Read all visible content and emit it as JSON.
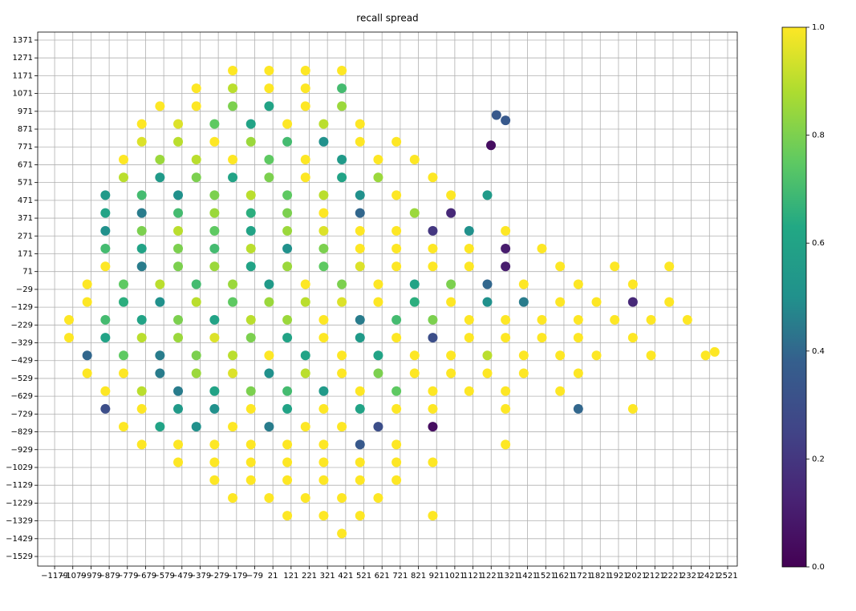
{
  "chart_data": {
    "type": "scatter",
    "title": "recall spread",
    "xlim": [
      -1272,
      2574
    ],
    "ylim": [
      -1583,
      1416
    ],
    "grid": true,
    "xticks": [
      {
        "value": -1179,
        "label": "−1179"
      },
      {
        "value": -1079,
        "label": "−1079"
      },
      {
        "value": -979,
        "label": "−979"
      },
      {
        "value": -879,
        "label": "−879"
      },
      {
        "value": -779,
        "label": "−779"
      },
      {
        "value": -679,
        "label": "−679"
      },
      {
        "value": -579,
        "label": "−579"
      },
      {
        "value": -479,
        "label": "−479"
      },
      {
        "value": -379,
        "label": "−379"
      },
      {
        "value": -279,
        "label": "−279"
      },
      {
        "value": -179,
        "label": "−179"
      },
      {
        "value": -79,
        "label": "−79"
      },
      21,
      121,
      221,
      321,
      421,
      521,
      621,
      721,
      821,
      921,
      1021,
      1121,
      1221,
      1321,
      1421,
      1521,
      1621,
      1721,
      1821,
      1921,
      2021,
      2121,
      2221,
      2321,
      2421,
      2521
    ],
    "yticks": [
      {
        "value": -1529,
        "label": "−1529"
      },
      {
        "value": -1429,
        "label": "−1429"
      },
      {
        "value": -1329,
        "label": "−1329"
      },
      {
        "value": -1229,
        "label": "−1229"
      },
      {
        "value": -1129,
        "label": "−1129"
      },
      {
        "value": -1029,
        "label": "−1029"
      },
      {
        "value": -929,
        "label": "−929"
      },
      {
        "value": -829,
        "label": "−829"
      },
      {
        "value": -729,
        "label": "−729"
      },
      {
        "value": -629,
        "label": "−629"
      },
      {
        "value": -529,
        "label": "−529"
      },
      {
        "value": -429,
        "label": "−429"
      },
      {
        "value": -329,
        "label": "−329"
      },
      {
        "value": -229,
        "label": "−229"
      },
      {
        "value": -129,
        "label": "−129"
      },
      {
        "value": -29,
        "label": "−29"
      },
      71,
      171,
      271,
      371,
      471,
      571,
      671,
      771,
      871,
      971,
      1071,
      1171,
      1271,
      1371
    ],
    "colorbar": {
      "lim": [
        0,
        1
      ],
      "ticks": [
        {
          "value": 0,
          "label": "0.0"
        },
        0.2,
        0.4,
        0.6,
        0.8,
        {
          "value": 1,
          "label": "1.0"
        }
      ]
    },
    "x": [
      -200,
      0,
      200,
      400,
      -400,
      -200,
      0,
      200,
      400,
      -600,
      -400,
      -200,
      0,
      200,
      400,
      -700,
      -500,
      -300,
      -100,
      100,
      300,
      500,
      -700,
      -500,
      -300,
      -100,
      100,
      300,
      500,
      700,
      -800,
      -600,
      -400,
      -200,
      0,
      200,
      400,
      600,
      800,
      -800,
      -600,
      -400,
      -200,
      0,
      200,
      400,
      600,
      900,
      -900,
      -700,
      -500,
      -300,
      -100,
      100,
      300,
      500,
      700,
      1000,
      1200,
      -900,
      -700,
      -500,
      -300,
      -100,
      100,
      300,
      500,
      800,
      1000,
      -900,
      -700,
      -500,
      -300,
      -100,
      100,
      300,
      500,
      700,
      900,
      1100,
      1300,
      -900,
      -700,
      -500,
      -300,
      -100,
      100,
      300,
      500,
      700,
      900,
      1100,
      1300,
      1500,
      -900,
      -700,
      -500,
      -300,
      -100,
      100,
      300,
      500,
      700,
      900,
      1100,
      1300,
      1600,
      1900,
      2200,
      -1000,
      -800,
      -600,
      -400,
      -200,
      0,
      200,
      400,
      600,
      800,
      1000,
      1200,
      1400,
      1700,
      2000,
      -1000,
      -800,
      -600,
      -400,
      -200,
      0,
      200,
      400,
      600,
      800,
      1000,
      1200,
      1400,
      1600,
      1800,
      2000,
      2200,
      -1100,
      -900,
      -700,
      -500,
      -300,
      -100,
      100,
      300,
      500,
      700,
      900,
      1100,
      1300,
      1500,
      1700,
      1900,
      2100,
      2300,
      -1100,
      -900,
      -700,
      -500,
      -300,
      -100,
      100,
      300,
      500,
      700,
      900,
      1100,
      1300,
      1500,
      1700,
      2000,
      -1000,
      -800,
      -600,
      -400,
      -200,
      0,
      200,
      400,
      600,
      800,
      1000,
      1200,
      1400,
      1600,
      1800,
      2100,
      2400,
      -1000,
      -800,
      -600,
      -400,
      -200,
      0,
      200,
      400,
      600,
      800,
      1000,
      1200,
      1400,
      1700,
      -900,
      -700,
      -500,
      -300,
      -100,
      100,
      300,
      500,
      700,
      900,
      1100,
      1300,
      1600,
      -900,
      -700,
      -500,
      -300,
      -100,
      100,
      300,
      500,
      700,
      900,
      1300,
      1700,
      2000,
      -800,
      -600,
      -400,
      -200,
      0,
      200,
      400,
      600,
      900,
      -700,
      -500,
      -300,
      -100,
      100,
      300,
      500,
      700,
      1300,
      -500,
      -300,
      -100,
      100,
      300,
      500,
      700,
      900,
      -300,
      -100,
      100,
      300,
      500,
      700,
      -200,
      0,
      200,
      400,
      600,
      100,
      300,
      500,
      900,
      400,
      1250,
      1300,
      1220,
      2450
    ],
    "y": [
      1200,
      1200,
      1200,
      1200,
      1100,
      1100,
      1100,
      1100,
      1100,
      1000,
      1000,
      1000,
      1000,
      1000,
      1000,
      900,
      900,
      900,
      900,
      900,
      900,
      900,
      800,
      800,
      800,
      800,
      800,
      800,
      800,
      800,
      700,
      700,
      700,
      700,
      700,
      700,
      700,
      700,
      700,
      600,
      600,
      600,
      600,
      600,
      600,
      600,
      600,
      600,
      500,
      500,
      500,
      500,
      500,
      500,
      500,
      500,
      500,
      500,
      500,
      400,
      400,
      400,
      400,
      400,
      400,
      400,
      400,
      400,
      400,
      300,
      300,
      300,
      300,
      300,
      300,
      300,
      300,
      300,
      300,
      300,
      300,
      200,
      200,
      200,
      200,
      200,
      200,
      200,
      200,
      200,
      200,
      200,
      200,
      200,
      100,
      100,
      100,
      100,
      100,
      100,
      100,
      100,
      100,
      100,
      100,
      100,
      100,
      100,
      100,
      0,
      0,
      0,
      0,
      0,
      0,
      0,
      0,
      0,
      0,
      0,
      0,
      0,
      0,
      0,
      -100,
      -100,
      -100,
      -100,
      -100,
      -100,
      -100,
      -100,
      -100,
      -100,
      -100,
      -100,
      -100,
      -100,
      -100,
      -100,
      -100,
      -200,
      -200,
      -200,
      -200,
      -200,
      -200,
      -200,
      -200,
      -200,
      -200,
      -200,
      -200,
      -200,
      -200,
      -200,
      -200,
      -200,
      -200,
      -300,
      -300,
      -300,
      -300,
      -300,
      -300,
      -300,
      -300,
      -300,
      -300,
      -300,
      -300,
      -300,
      -300,
      -300,
      -300,
      -400,
      -400,
      -400,
      -400,
      -400,
      -400,
      -400,
      -400,
      -400,
      -400,
      -400,
      -400,
      -400,
      -400,
      -400,
      -400,
      -400,
      -500,
      -500,
      -500,
      -500,
      -500,
      -500,
      -500,
      -500,
      -500,
      -500,
      -500,
      -500,
      -500,
      -500,
      -600,
      -600,
      -600,
      -600,
      -600,
      -600,
      -600,
      -600,
      -600,
      -600,
      -600,
      -600,
      -600,
      -700,
      -700,
      -700,
      -700,
      -700,
      -700,
      -700,
      -700,
      -700,
      -700,
      -700,
      -700,
      -700,
      -800,
      -800,
      -800,
      -800,
      -800,
      -800,
      -800,
      -800,
      -800,
      -900,
      -900,
      -900,
      -900,
      -900,
      -900,
      -900,
      -900,
      -900,
      -1000,
      -1000,
      -1000,
      -1000,
      -1000,
      -1000,
      -1000,
      -1000,
      -1100,
      -1100,
      -1100,
      -1100,
      -1100,
      -1100,
      -1200,
      -1200,
      -1200,
      -1200,
      -1200,
      -1300,
      -1300,
      -1300,
      -1300,
      -1400,
      950,
      920,
      780,
      -380
    ],
    "c": [
      1,
      1,
      1,
      1,
      1,
      0.9,
      1,
      1,
      0.7,
      1,
      1,
      0.8,
      0.6,
      1,
      0.85,
      1,
      0.95,
      0.75,
      0.6,
      1,
      0.9,
      1,
      0.95,
      0.9,
      1,
      0.85,
      0.7,
      0.5,
      1,
      1,
      1,
      0.85,
      0.9,
      1,
      0.75,
      1,
      0.55,
      1,
      1,
      0.9,
      0.55,
      0.8,
      0.6,
      0.8,
      1,
      0.6,
      0.85,
      1,
      0.55,
      0.7,
      0.5,
      0.8,
      0.9,
      0.75,
      0.9,
      0.5,
      1,
      1,
      0.55,
      0.6,
      0.45,
      0.7,
      0.85,
      0.65,
      0.8,
      1,
      0.4,
      0.85,
      0.15,
      0.5,
      0.8,
      0.9,
      0.75,
      0.6,
      0.85,
      0.95,
      1,
      1,
      0.2,
      0.5,
      1,
      0.7,
      0.6,
      0.8,
      0.7,
      0.9,
      0.5,
      0.8,
      1,
      1,
      1,
      1,
      0.1,
      1,
      1,
      0.45,
      0.8,
      0.85,
      0.6,
      0.85,
      0.75,
      0.95,
      1,
      1,
      1,
      0.1,
      1,
      1,
      1,
      1,
      0.75,
      0.9,
      0.7,
      0.85,
      0.55,
      1,
      0.8,
      1,
      0.6,
      0.8,
      0.4,
      1,
      1,
      1,
      1,
      0.65,
      0.5,
      0.9,
      0.75,
      0.85,
      0.9,
      0.95,
      1,
      0.65,
      1,
      0.5,
      0.45,
      1,
      1,
      0.15,
      1,
      1,
      0.7,
      0.6,
      0.8,
      0.6,
      0.9,
      0.85,
      1,
      0.45,
      0.7,
      0.8,
      1,
      1,
      1,
      1,
      1,
      1,
      1,
      1,
      0.6,
      0.9,
      0.85,
      0.95,
      0.8,
      0.6,
      1,
      0.55,
      1,
      0.3,
      1,
      1,
      1,
      1,
      1,
      0.4,
      0.75,
      0.45,
      0.8,
      0.9,
      1,
      0.6,
      1,
      0.6,
      1,
      1,
      0.9,
      1,
      1,
      1,
      1,
      1,
      1,
      1,
      0.45,
      0.85,
      0.95,
      0.5,
      0.9,
      1,
      0.8,
      1,
      1,
      1,
      1,
      1,
      1,
      0.9,
      0.45,
      0.6,
      0.8,
      0.7,
      0.55,
      1,
      0.75,
      1,
      1,
      1,
      1,
      0.3,
      1,
      0.55,
      0.5,
      1,
      0.6,
      1,
      0.6,
      1,
      1,
      1,
      0.4,
      1,
      1,
      0.6,
      0.5,
      1,
      0.45,
      1,
      1,
      0.3,
      0.05,
      1,
      1,
      1,
      1,
      1,
      1,
      0.35,
      1,
      1,
      1,
      1,
      1,
      1,
      1,
      1,
      1,
      1,
      1,
      1,
      1,
      1,
      1,
      1,
      1,
      1,
      1,
      1,
      1,
      1,
      1,
      1,
      1,
      1,
      0.35,
      0.35,
      0.05,
      1
    ]
  }
}
